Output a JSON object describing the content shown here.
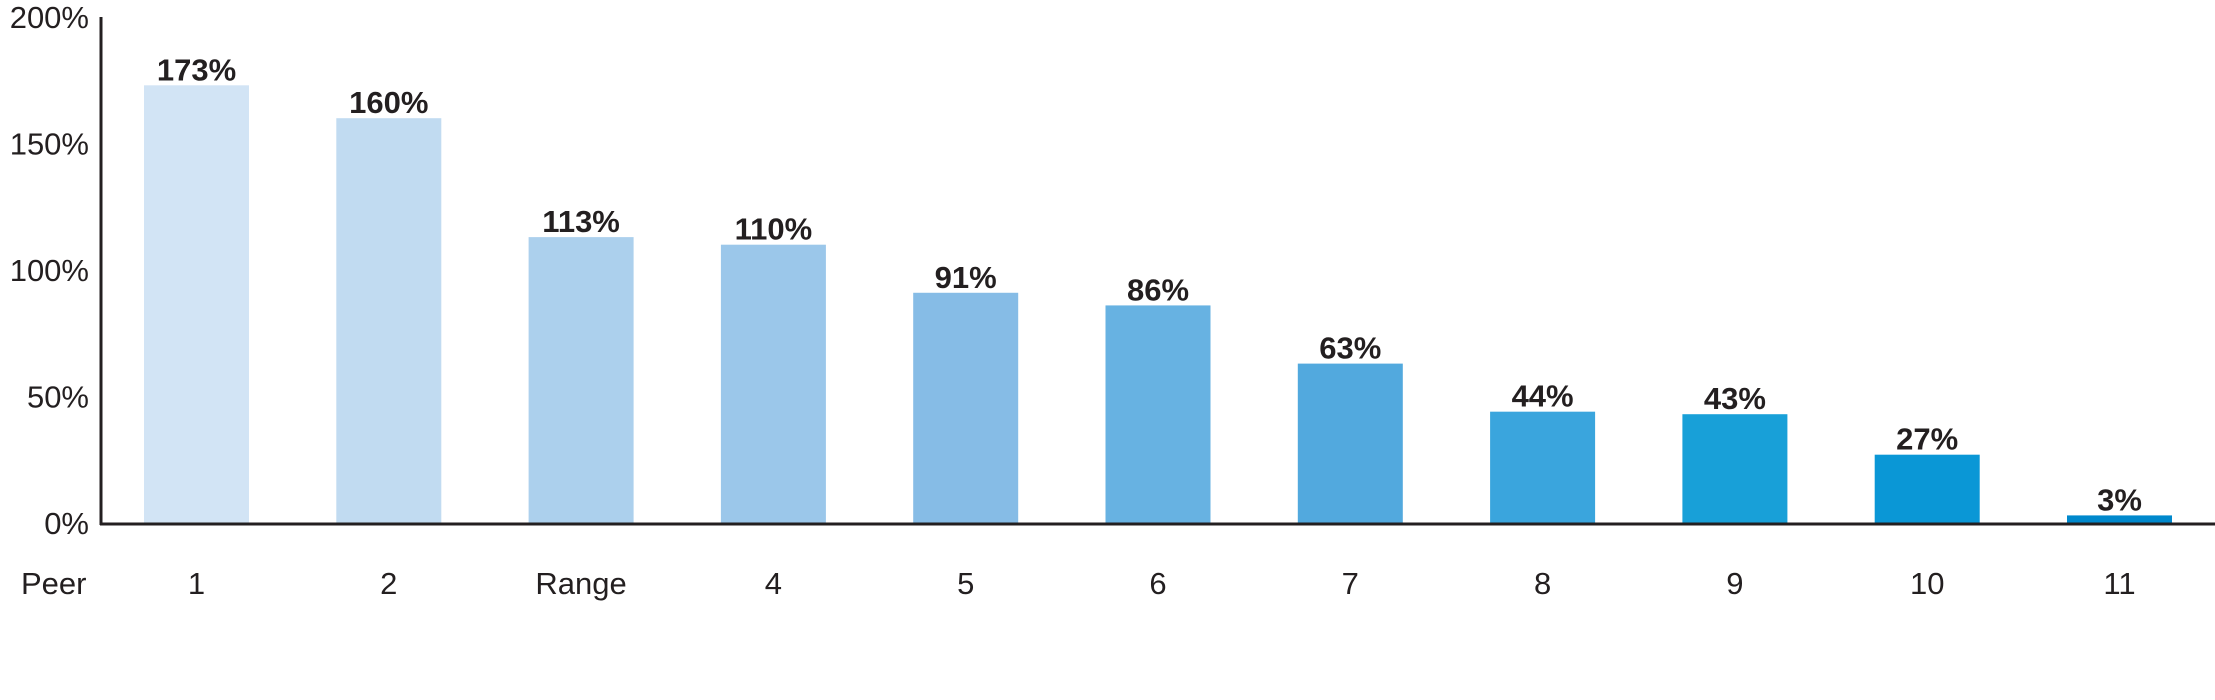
{
  "chart_data": {
    "type": "bar",
    "title": "",
    "xlabel": "Peer",
    "ylabel": "",
    "categories": [
      "1",
      "2",
      "Range",
      "4",
      "5",
      "6",
      "7",
      "8",
      "9",
      "10",
      "11"
    ],
    "values": [
      173,
      160,
      113,
      110,
      91,
      86,
      63,
      44,
      43,
      27,
      3
    ],
    "data_labels": [
      "173%",
      "160%",
      "113%",
      "110%",
      "91%",
      "86%",
      "63%",
      "44%",
      "43%",
      "27%",
      "3%"
    ],
    "ylim": [
      0,
      200
    ],
    "yticks": [
      0,
      50,
      100,
      150,
      200
    ],
    "ytick_labels": [
      "0%",
      "50%",
      "100%",
      "150%",
      "200%"
    ],
    "grid": false,
    "legend": "none",
    "colors": [
      "#d2e4f5",
      "#c1dbf1",
      "#acd0ed",
      "#9bc7ea",
      "#86bce6",
      "#67b2e2",
      "#52a9de",
      "#3aa5dd",
      "#18a0d8",
      "#0a97d6",
      "#0088cc"
    ],
    "axis_color": "#231f20"
  }
}
